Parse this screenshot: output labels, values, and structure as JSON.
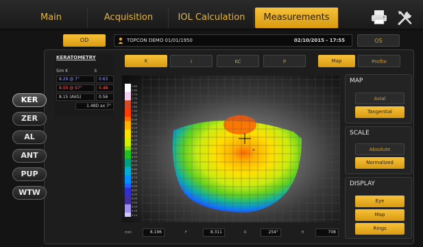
{
  "nav": {
    "tabs": [
      {
        "label": "Main"
      },
      {
        "label": "Acquisition"
      },
      {
        "label": "IOL Calculation"
      },
      {
        "label": "Measurements"
      }
    ],
    "active_tab": "Measurements"
  },
  "patient_bar": {
    "od_label": "OD",
    "os_label": "OS",
    "patient": "TOPCON DEMO 01/01/1950",
    "datetime": "02/10/2015 - 17:55"
  },
  "side_tabs": [
    {
      "label": "KER"
    },
    {
      "label": "ZER"
    },
    {
      "label": "AL"
    },
    {
      "label": "ANT"
    },
    {
      "label": "PUP"
    },
    {
      "label": "WTW"
    }
  ],
  "keratometry": {
    "title": "KERATOMETRY",
    "sim_k_label": "Sim K",
    "k_label": "k",
    "rows": [
      {
        "main": "8.29 @ 7°",
        "side": "0.63",
        "color": "#9aa4ff"
      },
      {
        "main": "8.00 @ 97°",
        "side": "0.48",
        "color": "#ff6060"
      },
      {
        "main": "8.15 (AVG)",
        "side": "0.56",
        "color": "#dddddd"
      },
      {
        "main": "1.48D ax 7°",
        "side": "",
        "color": "#dddddd"
      }
    ]
  },
  "sub_tabs": {
    "left": [
      {
        "label": "K"
      },
      {
        "label": "I"
      },
      {
        "label": "KC"
      },
      {
        "label": "P"
      }
    ],
    "right": [
      {
        "label": "Map"
      },
      {
        "label": "Profile"
      }
    ]
  },
  "colors": {
    "accent": "#e6a520",
    "scale": [
      "#ffffff",
      "#f7d0f0",
      "#d24a2a",
      "#ff3c00",
      "#ff7000",
      "#ffb000",
      "#ffe000",
      "#d0f000",
      "#80e020",
      "#20c020",
      "#00a080",
      "#00b0d0",
      "#0090ff",
      "#2060ff",
      "#3030d0",
      "#4030a0",
      "#a090f0",
      "#d0c8ff"
    ]
  },
  "scale_values": [
    "7.60",
    "7.65",
    "7.70",
    "7.75",
    "7.80",
    "7.85",
    "7.90",
    "7.95",
    "8.00",
    "8.05",
    "8.10",
    "8.15",
    "8.20",
    "8.25",
    "8.30",
    "8.35",
    "8.40",
    "8.45",
    "8.50",
    "8.55",
    "8.60",
    "8.65",
    "8.70",
    "8.75",
    "8.80",
    "8.85",
    "8.90",
    "8.95",
    "9.00",
    "9.05",
    "9.10",
    "9.15"
  ],
  "readouts": [
    {
      "label": "mm",
      "value": "8.196"
    },
    {
      "label": "F",
      "value": "8.311"
    },
    {
      "label": "R",
      "value": "254°"
    },
    {
      "label": "θ",
      "value": "708"
    }
  ],
  "right_panels": {
    "map": {
      "title": "MAP",
      "options": [
        "Axial",
        "Tangential"
      ],
      "selected": "Tangential"
    },
    "scale": {
      "title": "SCALE",
      "options": [
        "Absolute",
        "Normalized"
      ],
      "selected": "Normalized"
    },
    "display": {
      "title": "DISPLAY",
      "options": [
        "Eye",
        "Map",
        "Rings"
      ],
      "selected": [
        "Eye",
        "Map",
        "Rings"
      ]
    }
  },
  "icons": [
    "printer-icon",
    "tools-icon",
    "user-icon"
  ]
}
